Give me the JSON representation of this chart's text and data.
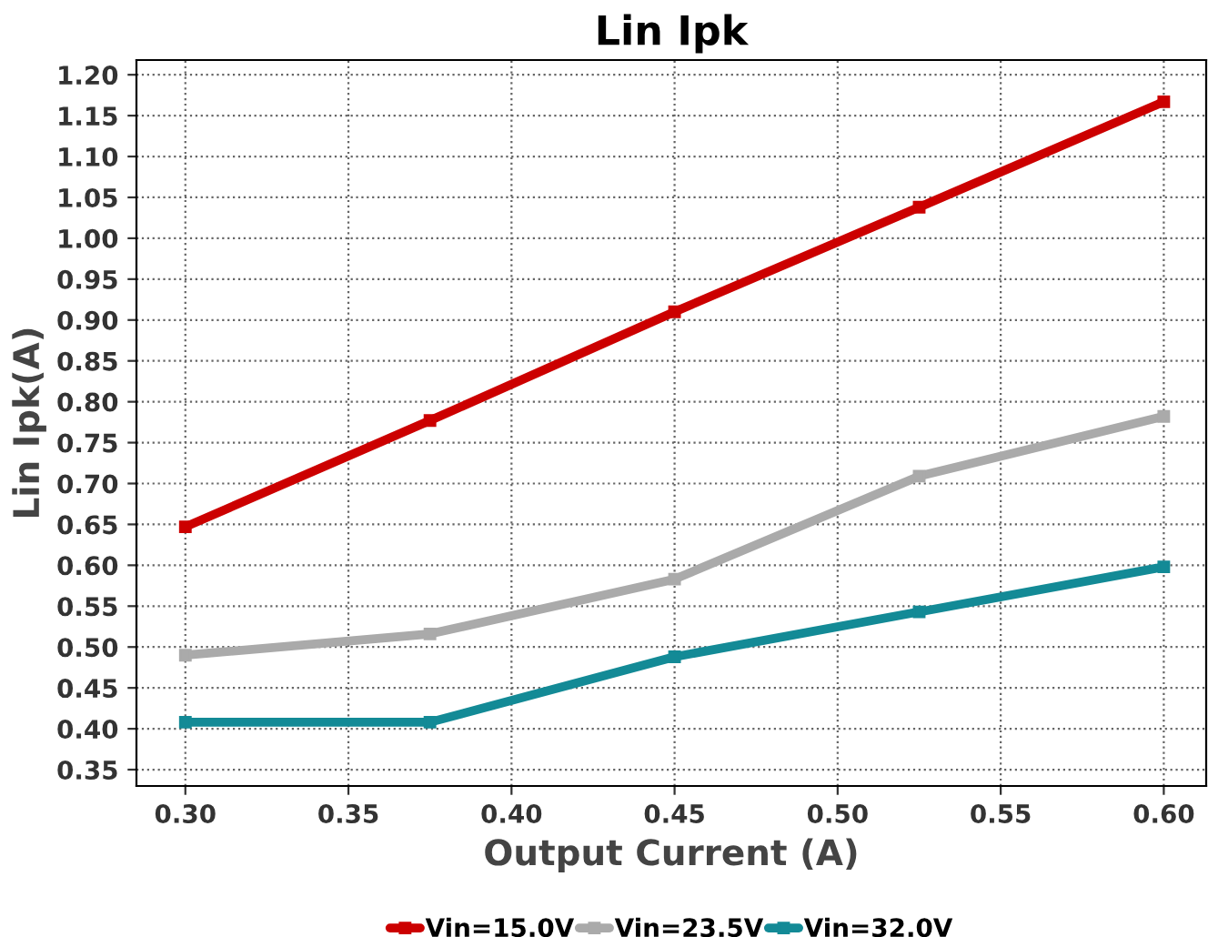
{
  "chart_data": {
    "type": "line",
    "title": "Lin Ipk",
    "xlabel": "Output Current (A)",
    "ylabel": "Lin Ipk(A)",
    "x": [
      0.3,
      0.375,
      0.45,
      0.525,
      0.6
    ],
    "series": [
      {
        "name": "Vin=15.0V",
        "color": "#cc0000",
        "values": [
          0.647,
          0.777,
          0.91,
          1.038,
          1.167
        ]
      },
      {
        "name": "Vin=23.5V",
        "color": "#aaaaaa",
        "values": [
          0.49,
          0.516,
          0.583,
          0.709,
          0.782
        ]
      },
      {
        "name": "Vin=32.0V",
        "color": "#138a96",
        "values": [
          0.408,
          0.408,
          0.488,
          0.543,
          0.598
        ]
      }
    ],
    "xlim": [
      0.285,
      0.613
    ],
    "ylim": [
      0.33,
      1.218
    ],
    "xticks": [
      {
        "value": 0.3,
        "label": "0.30"
      },
      {
        "value": 0.35,
        "label": "0.35"
      },
      {
        "value": 0.4,
        "label": "0.40"
      },
      {
        "value": 0.45,
        "label": "0.45"
      },
      {
        "value": 0.5,
        "label": "0.50"
      },
      {
        "value": 0.55,
        "label": "0.55"
      },
      {
        "value": 0.6,
        "label": "0.60"
      }
    ],
    "yticks": [
      {
        "value": 0.35,
        "label": "0.35"
      },
      {
        "value": 0.4,
        "label": "0.40"
      },
      {
        "value": 0.45,
        "label": "0.45"
      },
      {
        "value": 0.5,
        "label": "0.50"
      },
      {
        "value": 0.55,
        "label": "0.55"
      },
      {
        "value": 0.6,
        "label": "0.60"
      },
      {
        "value": 0.65,
        "label": "0.65"
      },
      {
        "value": 0.7,
        "label": "0.70"
      },
      {
        "value": 0.75,
        "label": "0.75"
      },
      {
        "value": 0.8,
        "label": "0.80"
      },
      {
        "value": 0.85,
        "label": "0.85"
      },
      {
        "value": 0.9,
        "label": "0.90"
      },
      {
        "value": 0.95,
        "label": "0.95"
      },
      {
        "value": 1.0,
        "label": "1.00"
      },
      {
        "value": 1.05,
        "label": "1.05"
      },
      {
        "value": 1.1,
        "label": "1.10"
      },
      {
        "value": 1.15,
        "label": "1.15"
      },
      {
        "value": 1.2,
        "label": "1.20"
      }
    ],
    "grid": true,
    "legend": "bottom",
    "marker": "square",
    "line_style": "solid"
  }
}
